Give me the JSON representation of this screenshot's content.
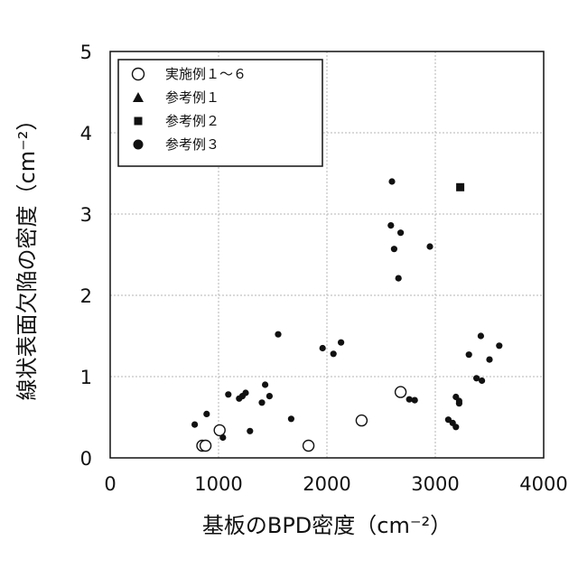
{
  "chart_data": {
    "type": "scatter",
    "xlabel": "基板のBPD密度（cm⁻²）",
    "ylabel": "線状表面欠陥の密度（cm⁻²）",
    "xlim": [
      0,
      4000
    ],
    "ylim": [
      0,
      5
    ],
    "x_ticks": [
      0,
      1000,
      2000,
      3000,
      4000
    ],
    "y_ticks": [
      0,
      1,
      2,
      3,
      4,
      5
    ],
    "grid": true,
    "legend_position": "top-left",
    "series": [
      {
        "name": "実施例１～６",
        "marker": "open-circle",
        "points": [
          {
            "x": 850,
            "y": 0.15
          },
          {
            "x": 880,
            "y": 0.15
          },
          {
            "x": 1010,
            "y": 0.34
          },
          {
            "x": 1830,
            "y": 0.15
          },
          {
            "x": 2320,
            "y": 0.46
          },
          {
            "x": 2680,
            "y": 0.81
          }
        ]
      },
      {
        "name": "参考例１",
        "marker": "filled-triangle",
        "points": []
      },
      {
        "name": "参考例２",
        "marker": "filled-square",
        "points": [
          {
            "x": 3230,
            "y": 3.33
          }
        ]
      },
      {
        "name": "参考例３",
        "marker": "filled-circle",
        "points": [
          {
            "x": 780,
            "y": 0.41
          },
          {
            "x": 890,
            "y": 0.54
          },
          {
            "x": 1040,
            "y": 0.25
          },
          {
            "x": 1090,
            "y": 0.78
          },
          {
            "x": 1190,
            "y": 0.73
          },
          {
            "x": 1220,
            "y": 0.76
          },
          {
            "x": 1250,
            "y": 0.8
          },
          {
            "x": 1290,
            "y": 0.33
          },
          {
            "x": 1400,
            "y": 0.68
          },
          {
            "x": 1430,
            "y": 0.9
          },
          {
            "x": 1470,
            "y": 0.76
          },
          {
            "x": 1550,
            "y": 1.52
          },
          {
            "x": 1670,
            "y": 0.48
          },
          {
            "x": 1960,
            "y": 1.35
          },
          {
            "x": 2060,
            "y": 1.28
          },
          {
            "x": 2130,
            "y": 1.42
          },
          {
            "x": 2590,
            "y": 2.86
          },
          {
            "x": 2600,
            "y": 3.4
          },
          {
            "x": 2620,
            "y": 2.57
          },
          {
            "x": 2660,
            "y": 2.21
          },
          {
            "x": 2680,
            "y": 2.77
          },
          {
            "x": 2760,
            "y": 0.72
          },
          {
            "x": 2810,
            "y": 0.71
          },
          {
            "x": 2950,
            "y": 2.6
          },
          {
            "x": 3120,
            "y": 0.47
          },
          {
            "x": 3160,
            "y": 0.43
          },
          {
            "x": 3190,
            "y": 0.38
          },
          {
            "x": 3190,
            "y": 0.75
          },
          {
            "x": 3220,
            "y": 0.67
          },
          {
            "x": 3220,
            "y": 0.7
          },
          {
            "x": 3310,
            "y": 1.27
          },
          {
            "x": 3380,
            "y": 0.98
          },
          {
            "x": 3420,
            "y": 1.5
          },
          {
            "x": 3430,
            "y": 0.95
          },
          {
            "x": 3500,
            "y": 1.21
          },
          {
            "x": 3590,
            "y": 1.38
          }
        ]
      }
    ]
  }
}
